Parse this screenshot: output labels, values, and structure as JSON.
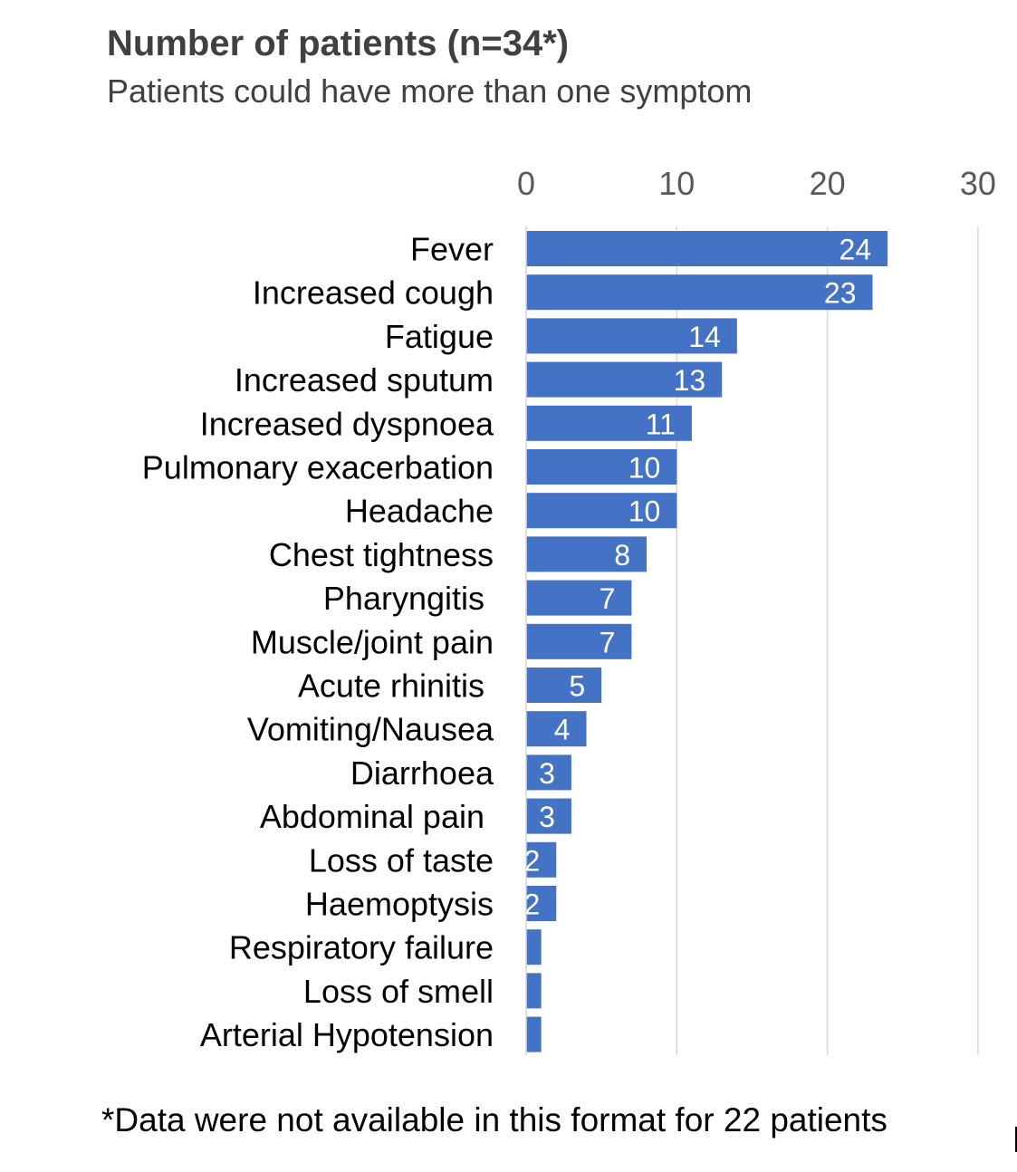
{
  "chart_data": {
    "type": "bar",
    "orientation": "horizontal",
    "title": "Number of patients (n=34*)",
    "subtitle": "Patients could have more than one symptom",
    "footnote": "*Data were not available in this format for 22 patients",
    "categories": [
      "Fever",
      "Increased cough",
      "Fatigue",
      "Increased sputum",
      "Increased dyspnoea",
      "Pulmonary exacerbation",
      "Headache",
      "Chest tightness",
      "Pharyngitis ",
      "Muscle/joint pain",
      "Acute rhinitis ",
      "Vomiting/Nausea",
      "Diarrhoea",
      "Abdominal pain ",
      "Loss of taste",
      "Haemoptysis",
      "Respiratory failure",
      "Loss of smell",
      "Arterial Hypotension"
    ],
    "values": [
      24,
      23,
      14,
      13,
      11,
      10,
      10,
      8,
      7,
      7,
      5,
      4,
      3,
      3,
      2,
      2,
      1,
      1,
      1
    ],
    "data_labels": [
      "24",
      "23",
      "14",
      "13",
      "11",
      "10",
      "10",
      "8",
      "7",
      "7",
      "5",
      "4",
      "3",
      "3",
      "2",
      "2",
      "",
      "",
      ""
    ],
    "xlim": [
      0,
      30
    ],
    "x_ticks": [
      0,
      10,
      20,
      30
    ],
    "x_axis_position": "top",
    "grid": true,
    "colors": {
      "bar": "#4472C4",
      "grid": "#D9D9D9",
      "label": "#000000",
      "tick": "#595959",
      "data_label": "#FFFFFF"
    }
  }
}
